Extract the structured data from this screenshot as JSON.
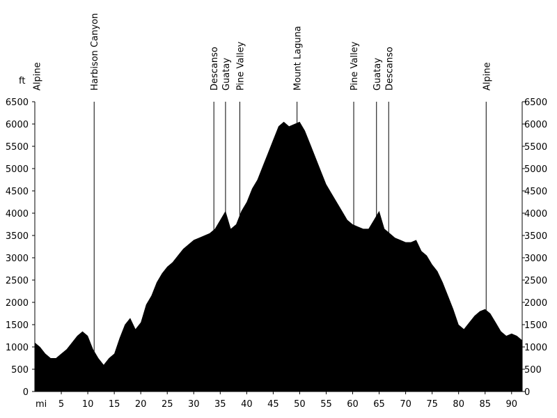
{
  "chart_data": {
    "type": "area",
    "title": "",
    "xlabel": "mi",
    "ylabel": "ft",
    "xlim": [
      0,
      92
    ],
    "ylim": [
      0,
      6500
    ],
    "x_ticks": [
      5,
      10,
      15,
      20,
      25,
      30,
      35,
      40,
      45,
      50,
      55,
      60,
      65,
      70,
      75,
      80,
      85,
      90
    ],
    "y_ticks": [
      0,
      500,
      1000,
      1500,
      2000,
      2500,
      3000,
      3500,
      4000,
      4500,
      5000,
      5500,
      6000,
      6500
    ],
    "grid": false,
    "fill_color": "#000000",
    "x_ticks_labels_left": true,
    "x": [
      0,
      1,
      2,
      3,
      4,
      5,
      6,
      7,
      8,
      9,
      10,
      11,
      12,
      13,
      14,
      15,
      16,
      17,
      18,
      19,
      20,
      21,
      22,
      23,
      24,
      25,
      26,
      27,
      28,
      29,
      30,
      31,
      32,
      33,
      34,
      35,
      36,
      37,
      38,
      39,
      40,
      41,
      42,
      43,
      44,
      45,
      46,
      47,
      48,
      49,
      50,
      51,
      52,
      53,
      54,
      55,
      56,
      57,
      58,
      59,
      60,
      61,
      62,
      63,
      64,
      65,
      66,
      67,
      68,
      69,
      70,
      71,
      72,
      73,
      74,
      75,
      76,
      77,
      78,
      79,
      80,
      81,
      82,
      83,
      84,
      85,
      86,
      87,
      88,
      89,
      90,
      91,
      92
    ],
    "values": [
      1100,
      1000,
      850,
      750,
      750,
      850,
      950,
      1100,
      1250,
      1350,
      1250,
      950,
      750,
      600,
      750,
      850,
      1200,
      1500,
      1650,
      1400,
      1550,
      1950,
      2150,
      2450,
      2650,
      2800,
      2900,
      3050,
      3200,
      3300,
      3400,
      3450,
      3500,
      3550,
      3650,
      3850,
      4050,
      3650,
      3750,
      4050,
      4250,
      4550,
      4750,
      5050,
      5350,
      5650,
      5950,
      6050,
      5950,
      6000,
      6050,
      5850,
      5550,
      5250,
      4950,
      4650,
      4450,
      4250,
      4050,
      3850,
      3750,
      3700,
      3650,
      3650,
      3850,
      4050,
      3650,
      3550,
      3450,
      3400,
      3350,
      3350,
      3400,
      3150,
      3050,
      2850,
      2700,
      2450,
      2150,
      1850,
      1500,
      1400,
      1550,
      1700,
      1800,
      1850,
      1750,
      1550,
      1350,
      1250,
      1300,
      1250,
      1150
    ],
    "markers": [
      {
        "label": "Alpine",
        "x": 0.3,
        "line": false
      },
      {
        "label": "Harbison Canyon",
        "x": 11.2,
        "line": true
      },
      {
        "label": "Descanso",
        "x": 33.8,
        "line": true
      },
      {
        "label": "Guatay",
        "x": 36.0,
        "line": true
      },
      {
        "label": "Pine Valley",
        "x": 38.7,
        "line": true
      },
      {
        "label": "Mount Laguna",
        "x": 49.5,
        "line": true
      },
      {
        "label": "Pine Valley",
        "x": 60.2,
        "line": true
      },
      {
        "label": "Guatay",
        "x": 64.5,
        "line": true
      },
      {
        "label": "Descanso",
        "x": 66.8,
        "line": true
      },
      {
        "label": "Alpine",
        "x": 85.2,
        "line": true
      }
    ]
  }
}
